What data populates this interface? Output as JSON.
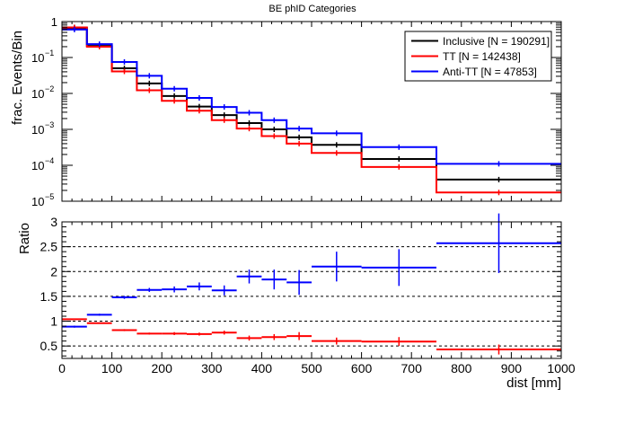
{
  "chart_data": [
    {
      "type": "line",
      "title": "BE phID Categories",
      "ylabel": "frac. Events/Bin",
      "xlabel": "",
      "xlim": [
        0,
        1000
      ],
      "ylim": [
        1e-05,
        1
      ],
      "yscale": "log",
      "grid": false,
      "legend_position": "top-right",
      "bin_edges": [
        0,
        50,
        100,
        150,
        200,
        250,
        300,
        350,
        400,
        450,
        500,
        600,
        750,
        1000
      ],
      "x_tick_labels": [
        "0",
        "100",
        "200",
        "300",
        "400",
        "500",
        "600",
        "700",
        "800",
        "900",
        "1000"
      ],
      "y_tick_labels": [
        {
          "value": 1e-05,
          "mant": "10",
          "exp": "−5"
        },
        {
          "value": 0.0001,
          "mant": "10",
          "exp": "−4"
        },
        {
          "value": 0.001,
          "mant": "10",
          "exp": "−3"
        },
        {
          "value": 0.01,
          "mant": "10",
          "exp": "−2"
        },
        {
          "value": 0.1,
          "mant": "10",
          "exp": "−1"
        },
        {
          "value": 1,
          "mant": "1",
          "exp": ""
        }
      ],
      "series": [
        {
          "name": "Inclusive [N = 190291]",
          "color": "#000000",
          "values": [
            0.66,
            0.21,
            0.05,
            0.019,
            0.0085,
            0.0043,
            0.0025,
            0.0015,
            0.001,
            0.0006,
            0.00037,
            0.00015,
            4e-05
          ]
        },
        {
          "name": "TT [N = 142438]",
          "color": "#ff0000",
          "values": [
            0.69,
            0.2,
            0.041,
            0.0122,
            0.0062,
            0.0033,
            0.0018,
            0.00105,
            0.00065,
            0.0004,
            0.00022,
            9e-05,
            1.75e-05
          ]
        },
        {
          "name": "Anti-TT [N = 47853]",
          "color": "#0000ff",
          "values": [
            0.6,
            0.235,
            0.075,
            0.031,
            0.0135,
            0.0075,
            0.0042,
            0.0029,
            0.0018,
            0.00105,
            0.00078,
            0.00032,
            0.00011
          ]
        }
      ]
    },
    {
      "type": "scatter",
      "title": "",
      "ylabel": "Ratio",
      "xlabel": "dist [mm]",
      "xlim": [
        0,
        1000
      ],
      "ylim": [
        0.25,
        3
      ],
      "grid": false,
      "dashed_reference_lines": [
        0.5,
        1,
        1.5,
        2,
        2.5
      ],
      "x_tick_labels": [
        "0",
        "100",
        "200",
        "300",
        "400",
        "500",
        "600",
        "700",
        "800",
        "900",
        "1000"
      ],
      "y_tick_labels": [
        "0.5",
        "1",
        "1.5",
        "2",
        "2.5",
        "3"
      ],
      "bin_edges": [
        0,
        50,
        100,
        150,
        200,
        250,
        300,
        350,
        400,
        450,
        500,
        600,
        750,
        1000
      ],
      "series": [
        {
          "name": "Anti-TT",
          "color": "#0000ff",
          "values": [
            0.89,
            1.13,
            1.48,
            1.63,
            1.64,
            1.7,
            1.62,
            1.9,
            1.84,
            1.78,
            2.1,
            2.08,
            2.57
          ],
          "errors": [
            0.02,
            0.02,
            0.03,
            0.04,
            0.06,
            0.08,
            0.1,
            0.14,
            0.2,
            0.25,
            0.3,
            0.37,
            0.6
          ]
        },
        {
          "name": "TT",
          "color": "#ff0000",
          "values": [
            1.04,
            0.96,
            0.82,
            0.75,
            0.75,
            0.74,
            0.77,
            0.66,
            0.68,
            0.7,
            0.6,
            0.59,
            0.43
          ],
          "errors": [
            0.01,
            0.01,
            0.02,
            0.02,
            0.03,
            0.03,
            0.04,
            0.05,
            0.06,
            0.08,
            0.07,
            0.09,
            0.1
          ]
        }
      ]
    }
  ]
}
